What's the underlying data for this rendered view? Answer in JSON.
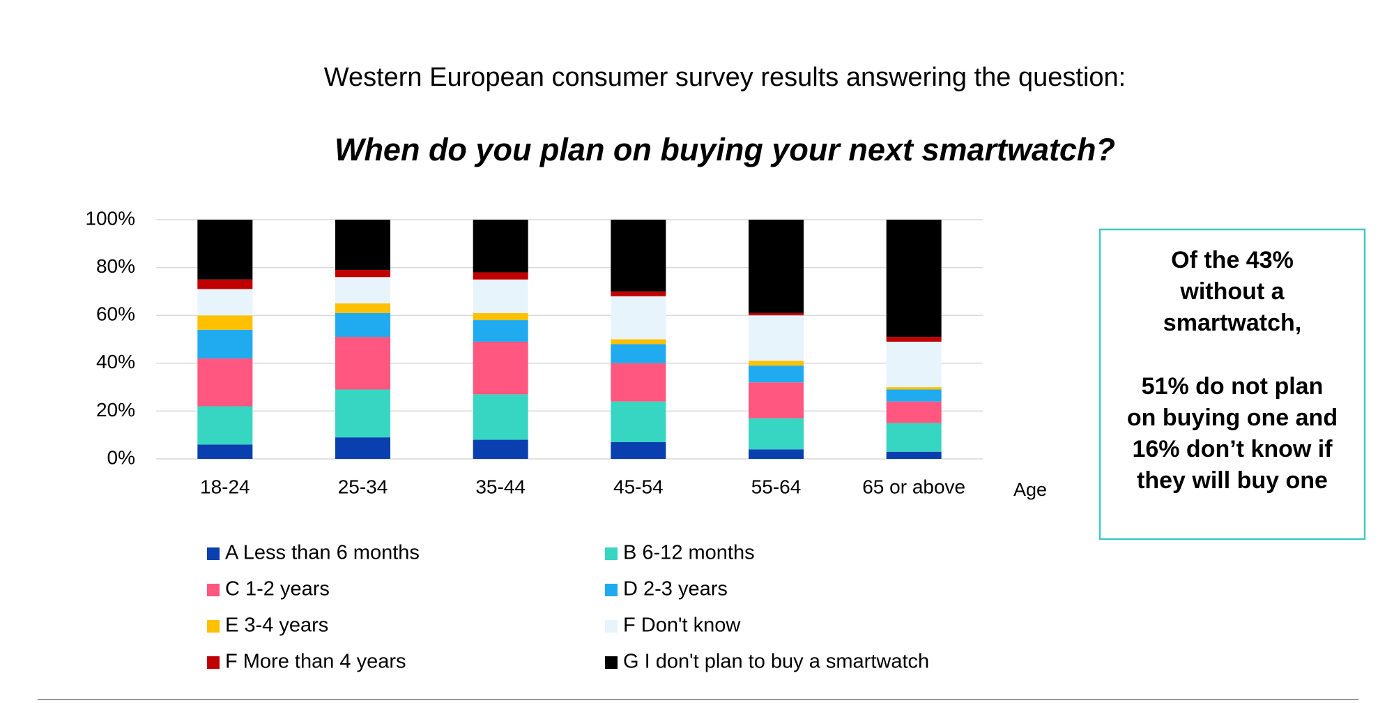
{
  "chart_data": {
    "type": "stacked_bar",
    "title": "Western European consumer survey results answering the question:",
    "subtitle": "When do you plan on buying your next smartwatch?",
    "xlabel": "Age",
    "categories": [
      "18-24",
      "25-34",
      "35-44",
      "45-54",
      "55-64",
      "65 or above"
    ],
    "series": [
      {
        "name": "A Less than 6 months",
        "color": "#0a3fb0",
        "values": [
          6,
          9,
          8,
          7,
          4,
          3
        ]
      },
      {
        "name": "B 6-12 months",
        "color": "#36d6c3",
        "values": [
          16,
          20,
          19,
          17,
          13,
          12
        ]
      },
      {
        "name": "C 1-2 years",
        "color": "#ff577f",
        "values": [
          20,
          22,
          22,
          16,
          15,
          9
        ]
      },
      {
        "name": "D 2-3 years",
        "color": "#20aaf0",
        "values": [
          12,
          10,
          9,
          8,
          7,
          5
        ]
      },
      {
        "name": "E 3-4 years",
        "color": "#ffc000",
        "values": [
          6,
          4,
          3,
          2,
          2,
          1
        ]
      },
      {
        "name": "F Don't know",
        "color": "#e8f4fc",
        "values": [
          11,
          11,
          14,
          18,
          19,
          19
        ]
      },
      {
        "name": "F More than 4 years",
        "color": "#c00000",
        "values": [
          4,
          3,
          3,
          2,
          1,
          2
        ]
      },
      {
        "name": "G I don't plan to buy a smartwatch",
        "color": "#000000",
        "values": [
          25,
          21,
          22,
          30,
          39,
          49
        ]
      }
    ],
    "ylim": [
      0,
      100
    ],
    "yticks": [
      {
        "value": 0,
        "label": "0%"
      },
      {
        "value": 20,
        "label": "20%"
      },
      {
        "value": 40,
        "label": "40%"
      },
      {
        "value": 60,
        "label": "60%"
      },
      {
        "value": 80,
        "label": "80%"
      },
      {
        "value": 100,
        "label": "100%"
      }
    ],
    "grid": true,
    "annotation_lines": [
      "Of the 43%",
      "without a",
      "smartwatch,",
      "51% do not plan",
      "on buying one and",
      "16% don’t know if",
      "they will buy one"
    ]
  }
}
